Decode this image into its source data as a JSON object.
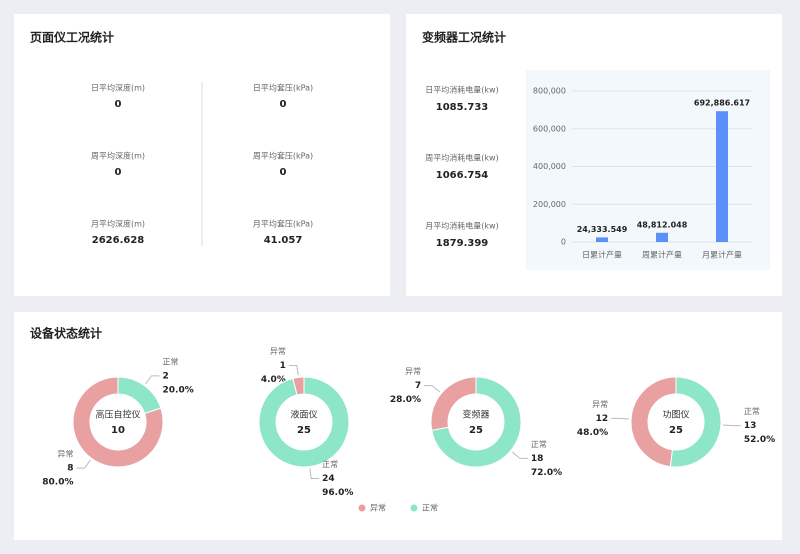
{
  "level_panel": {
    "title": "页面仪工况统计",
    "items": [
      {
        "label": "日平均深度(m)",
        "value": 0
      },
      {
        "label": "日平均套压(kPa)",
        "value": 0
      },
      {
        "label": "周平均深度(m)",
        "value": 0
      },
      {
        "label": "周平均套压(kPa)",
        "value": 0
      },
      {
        "label": "月平均深度(m)",
        "value": 2626.628
      },
      {
        "label": "月平均套压(kPa)",
        "value": 41.057
      }
    ]
  },
  "inverter_panel": {
    "title": "变频器工况统计",
    "items": [
      {
        "label": "日平均消耗电量(kw)",
        "value": 1085.733
      },
      {
        "label": "周平均消耗电量(kw)",
        "value": 1066.754
      },
      {
        "label": "月平均消耗电量(kw)",
        "value": 1879.399
      }
    ]
  },
  "status_panel": {
    "title": "设备状态统计"
  },
  "chart_data": [
    {
      "type": "bar",
      "categories": [
        "日累计产量",
        "周累计产量",
        "月累计产量"
      ],
      "values": [
        24333.549,
        48812.048,
        692886.617
      ],
      "value_labels": [
        "24,333.549",
        "48,812.048",
        "692,886.617"
      ],
      "color": "#5b8ff9",
      "ylim": [
        0,
        800000
      ],
      "yticks": [
        0,
        {
          "value": 200000,
          "label": "200,000"
        },
        {
          "value": 400000,
          "label": "400,000"
        },
        {
          "value": 600000,
          "label": "600,000"
        },
        {
          "value": 800000,
          "label": "800,000"
        }
      ],
      "grid": true
    },
    {
      "type": "pie",
      "title": "高压自控仪",
      "total": 10,
      "categories": [
        "异常",
        "正常"
      ],
      "values": [
        8,
        2
      ],
      "percents": [
        80,
        20
      ],
      "percent_labels": [
        "80.0%",
        "20.0%"
      ],
      "colors": [
        "#e8a0a0",
        "#8ee6c8"
      ]
    },
    {
      "type": "pie",
      "title": "液面仪",
      "total": 25,
      "categories": [
        "异常",
        "正常"
      ],
      "values": [
        1,
        24
      ],
      "percents": [
        4,
        96
      ],
      "percent_labels": [
        "4.0%",
        "96.0%"
      ],
      "colors": [
        "#e8a0a0",
        "#8ee6c8"
      ]
    },
    {
      "type": "pie",
      "title": "变频器",
      "total": 25,
      "categories": [
        "异常",
        "正常"
      ],
      "values": [
        7,
        18
      ],
      "percents": [
        28,
        72
      ],
      "percent_labels": [
        "28.0%",
        "72.0%"
      ],
      "colors": [
        "#e8a0a0",
        "#8ee6c8"
      ]
    },
    {
      "type": "pie",
      "title": "功图仪",
      "total": 25,
      "categories": [
        "异常",
        "正常"
      ],
      "values": [
        12,
        13
      ],
      "percents": [
        48,
        52
      ],
      "percent_labels": [
        "48.0%",
        "52.0%"
      ],
      "colors": [
        "#e8a0a0",
        "#8ee6c8"
      ]
    }
  ]
}
